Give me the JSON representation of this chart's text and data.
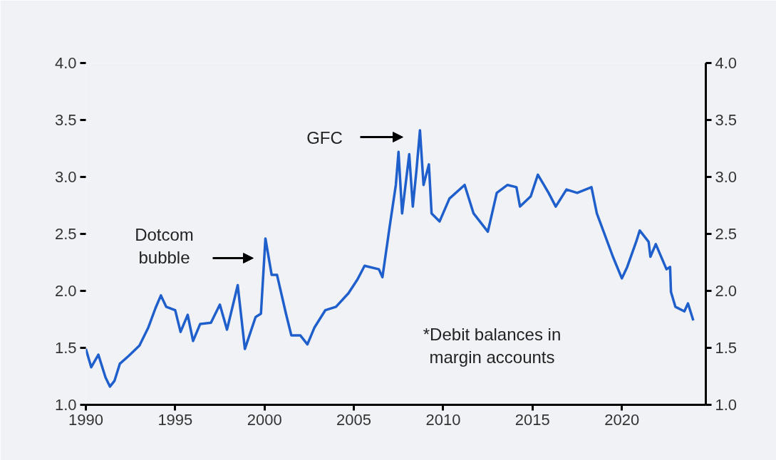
{
  "chart_data": {
    "type": "line",
    "x": [
      1990,
      1990.3,
      1990.7,
      1991.1,
      1991.35,
      1991.6,
      1991.9,
      1992.4,
      1993,
      1993.5,
      1993.9,
      1994.2,
      1994.5,
      1995,
      1995.3,
      1995.7,
      1996,
      1996.4,
      1997,
      1997.5,
      1997.9,
      1998.5,
      1998.9,
      1999.5,
      1999.8,
      2000.05,
      2000.4,
      2000.7,
      2001.2,
      2001.5,
      2002,
      2002.4,
      2002.8,
      2003.4,
      2004,
      2004.7,
      2005.2,
      2005.6,
      2006.4,
      2006.6,
      2007,
      2007.35,
      2007.5,
      2007.7,
      2008.1,
      2008.3,
      2008.5,
      2008.7,
      2008.9,
      2009.2,
      2009.35,
      2009.8,
      2010.35,
      2011.2,
      2011.7,
      2012.5,
      2013,
      2013.6,
      2014.1,
      2014.3,
      2014.9,
      2015.3,
      2015.9,
      2016.3,
      2016.9,
      2017.5,
      2018.3,
      2018.6,
      2019.5,
      2020,
      2020.3,
      2020.8,
      2021,
      2021.5,
      2021.6,
      2021.9,
      2022.5,
      2022.7,
      2022.75,
      2023,
      2023.5,
      2023.7,
      2024
    ],
    "series": [
      {
        "color": "#1f5fcc",
        "values": [
          1.49,
          1.33,
          1.44,
          1.24,
          1.16,
          1.21,
          1.36,
          1.43,
          1.52,
          1.68,
          1.85,
          1.96,
          1.86,
          1.83,
          1.64,
          1.79,
          1.56,
          1.71,
          1.72,
          1.88,
          1.66,
          2.05,
          1.49,
          1.77,
          1.8,
          2.46,
          2.14,
          2.14,
          1.8,
          1.61,
          1.61,
          1.53,
          1.68,
          1.83,
          1.86,
          1.98,
          2.1,
          2.22,
          2.19,
          2.12,
          2.56,
          2.93,
          3.22,
          2.68,
          3.2,
          2.74,
          3.05,
          3.41,
          2.93,
          3.11,
          2.68,
          2.61,
          2.81,
          2.93,
          2.68,
          2.52,
          2.86,
          2.93,
          2.91,
          2.74,
          2.83,
          3.02,
          2.86,
          2.74,
          2.89,
          2.86,
          2.91,
          2.68,
          2.3,
          2.11,
          2.21,
          2.43,
          2.53,
          2.43,
          2.3,
          2.41,
          2.19,
          2.21,
          1.99,
          1.86,
          1.82,
          1.89,
          1.74
        ]
      }
    ],
    "xlim": [
      1990,
      2024.7
    ],
    "xticks": [
      1990,
      1995,
      2000,
      2005,
      2010,
      2015,
      2020
    ],
    "ylim": [
      1.0,
      4.0
    ],
    "yticks": [
      {
        "value": 1,
        "label": "1.0"
      },
      1.5,
      {
        "value": 2,
        "label": "2.0"
      },
      2.5,
      {
        "value": 3,
        "label": "3.0"
      },
      3.5,
      {
        "value": 4,
        "label": "4.0"
      }
    ],
    "y2lim": [
      1.0,
      4.0
    ],
    "y2ticks": [
      {
        "value": 1,
        "label": "1.0"
      },
      1.5,
      {
        "value": 2,
        "label": "2.0"
      },
      2.5,
      {
        "value": 3,
        "label": "3.0"
      },
      3.5,
      {
        "value": 4,
        "label": "4.0"
      }
    ],
    "grid": false,
    "annotations": [
      "Dotcom\nbubble",
      "GFC",
      "*Debit balances in\nmargin accounts"
    ]
  }
}
